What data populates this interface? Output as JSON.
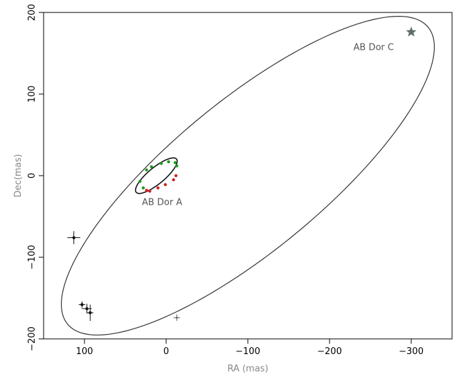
{
  "chart_data": {
    "type": "scatter",
    "xlabel": "RA (mas)",
    "ylabel": "Dec(mas)",
    "xlim": [
      150,
      -350
    ],
    "ylim": [
      -200,
      200
    ],
    "x_ticks": [
      100,
      0,
      -100,
      -200,
      -300
    ],
    "x_tick_labels": [
      "100",
      "0",
      "−100",
      "−200",
      "−300"
    ],
    "y_ticks": [
      -200,
      -100,
      0,
      100,
      200
    ],
    "y_tick_labels": [
      "−200",
      "−100",
      "0",
      "100",
      "200"
    ],
    "grid": false,
    "annotations": [
      {
        "text": "AB Dor A",
        "x": 5,
        "y": -36
      },
      {
        "text": "AB Dor C",
        "x": -254,
        "y": 154
      }
    ],
    "orbits": [
      {
        "name": "outer",
        "center": [
          -100,
          0
        ],
        "a": 286,
        "b": 92,
        "angle_deg": 39.5,
        "color": "#333333"
      },
      {
        "name": "inner",
        "center": [
          12,
          0
        ],
        "a": 32,
        "b": 10,
        "angle_deg": 39.5,
        "color": "#111111"
      }
    ],
    "series": [
      {
        "color": "#111111",
        "points": [
          {
            "x": 113,
            "y": -76,
            "ex": 8,
            "ey": 8
          },
          {
            "x": 103,
            "y": -158,
            "ex": 4,
            "ey": 4
          },
          {
            "x": 97,
            "y": -163,
            "ex": 6,
            "ey": 6
          },
          {
            "x": 93,
            "y": -168,
            "ex": 4,
            "ey": 10
          }
        ]
      },
      {
        "color": "#666666",
        "points": [
          {
            "x": -13,
            "y": -174,
            "ex": 4,
            "ey": 4
          }
        ]
      },
      {
        "color": "#1a9a1a",
        "points": [
          {
            "x": 32,
            "y": -7
          },
          {
            "x": 24,
            "y": 7
          },
          {
            "x": 18,
            "y": 11
          },
          {
            "x": 6,
            "y": 15
          },
          {
            "x": -3,
            "y": 17
          },
          {
            "x": -11,
            "y": 16
          },
          {
            "x": -13,
            "y": 12
          },
          {
            "x": 28,
            "y": -15
          }
        ]
      },
      {
        "color": "#d42020",
        "points": [
          {
            "x": 24,
            "y": -18
          },
          {
            "x": 20,
            "y": -19
          },
          {
            "x": 10,
            "y": -15
          },
          {
            "x": 1,
            "y": -11
          },
          {
            "x": -9,
            "y": -5
          },
          {
            "x": -12,
            "y": 0
          }
        ]
      },
      {
        "color": "#5f6e6e",
        "marker": "star",
        "points": [
          {
            "x": -300,
            "y": 176
          }
        ]
      }
    ]
  }
}
